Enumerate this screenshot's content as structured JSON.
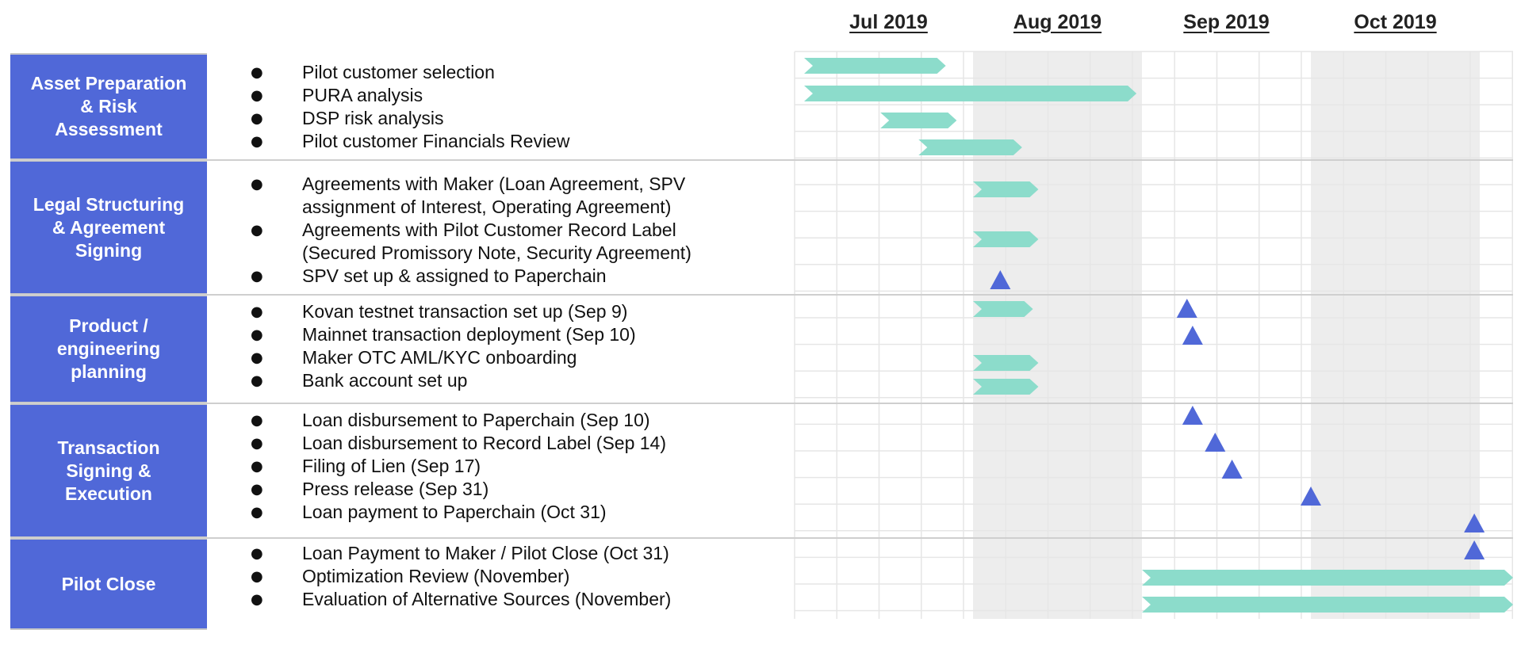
{
  "colors": {
    "phase_bg": "#5068d8",
    "bar": "#8cdccb",
    "milestone": "#5068d8",
    "shade": "#ededed",
    "grid": "#e6e6e6"
  },
  "timeline": {
    "months": [
      {
        "label": "Jul 2019",
        "shaded": false
      },
      {
        "label": "Aug 2019",
        "shaded": true
      },
      {
        "label": "Sep 2019",
        "shaded": false
      },
      {
        "label": "Oct 2019",
        "shaded": true
      }
    ]
  },
  "phases": [
    {
      "name": "Asset Preparation & Risk Assessment",
      "tasks": [
        {
          "text": "Pilot customer selection"
        },
        {
          "text": "PURA analysis"
        },
        {
          "text": "DSP risk analysis"
        },
        {
          "text": "Pilot customer Financials Review"
        }
      ]
    },
    {
      "name": "Legal Structuring & Agreement Signing",
      "tasks": [
        {
          "text": "Agreements with Maker (Loan Agreement, SPV",
          "text2": "assignment of Interest, Operating Agreement)"
        },
        {
          "text": "Agreements with Pilot Customer Record Label",
          "text2": "(Secured Promissory Note, Security Agreement)"
        },
        {
          "text": "SPV set up & assigned to Paperchain"
        }
      ]
    },
    {
      "name": "Product / engineering planning",
      "tasks": [
        {
          "text": "Kovan testnet transaction set up (Sep 9)"
        },
        {
          "text": "Mainnet transaction deployment (Sep 10)"
        },
        {
          "text": "Maker OTC AML/KYC onboarding"
        },
        {
          "text": "Bank account set up"
        }
      ]
    },
    {
      "name": "Transaction Signing & Execution",
      "tasks": [
        {
          "text": "Loan disbursement to Paperchain (Sep 10)"
        },
        {
          "text": "Loan disbursement to Record Label (Sep 14)"
        },
        {
          "text": "Filing of Lien (Sep 17)"
        },
        {
          "text": "Press release (Sep 31)"
        },
        {
          "text": "Loan payment to Paperchain (Oct 31)"
        }
      ]
    },
    {
      "name": "Pilot Close",
      "tasks": [
        {
          "text": "Loan Payment to Maker / Pilot Close (Oct 31)"
        },
        {
          "text": "Optimization Review (November)"
        },
        {
          "text": "Evaluation of Alternative Sources (November)"
        }
      ]
    }
  ],
  "schedule": [
    {
      "phase": 0,
      "task": 0,
      "bar": [
        "2019-07-01",
        "2019-07-27"
      ]
    },
    {
      "phase": 0,
      "task": 1,
      "bar": [
        "2019-07-01",
        "2019-08-31"
      ]
    },
    {
      "phase": 0,
      "task": 2,
      "bar": [
        "2019-07-15",
        "2019-07-29"
      ]
    },
    {
      "phase": 0,
      "task": 3,
      "bar": [
        "2019-07-22",
        "2019-08-10"
      ]
    },
    {
      "phase": 1,
      "task": 0,
      "bar": [
        "2019-08-01",
        "2019-08-13"
      ]
    },
    {
      "phase": 1,
      "task": 1,
      "bar": [
        "2019-08-01",
        "2019-08-13"
      ]
    },
    {
      "phase": 1,
      "task": 2,
      "milestone": "2019-08-06"
    },
    {
      "phase": 2,
      "task": 0,
      "bar": [
        "2019-08-01",
        "2019-08-12"
      ],
      "milestone": "2019-09-09"
    },
    {
      "phase": 2,
      "task": 1,
      "milestone": "2019-09-10"
    },
    {
      "phase": 2,
      "task": 2,
      "bar": [
        "2019-08-01",
        "2019-08-13"
      ]
    },
    {
      "phase": 2,
      "task": 3,
      "bar": [
        "2019-08-01",
        "2019-08-13"
      ]
    },
    {
      "phase": 3,
      "task": 0,
      "milestone": "2019-09-10"
    },
    {
      "phase": 3,
      "task": 1,
      "milestone": "2019-09-14"
    },
    {
      "phase": 3,
      "task": 2,
      "milestone": "2019-09-17"
    },
    {
      "phase": 3,
      "task": 3,
      "milestone": "2019-09-31"
    },
    {
      "phase": 3,
      "task": 4,
      "milestone": "2019-10-31"
    },
    {
      "phase": 4,
      "task": 0,
      "milestone": "2019-10-31"
    },
    {
      "phase": 4,
      "task": 1,
      "bar": [
        "2019-09-01",
        "2019-11-30"
      ]
    },
    {
      "phase": 4,
      "task": 2,
      "bar": [
        "2019-09-01",
        "2019-11-30"
      ]
    }
  ]
}
